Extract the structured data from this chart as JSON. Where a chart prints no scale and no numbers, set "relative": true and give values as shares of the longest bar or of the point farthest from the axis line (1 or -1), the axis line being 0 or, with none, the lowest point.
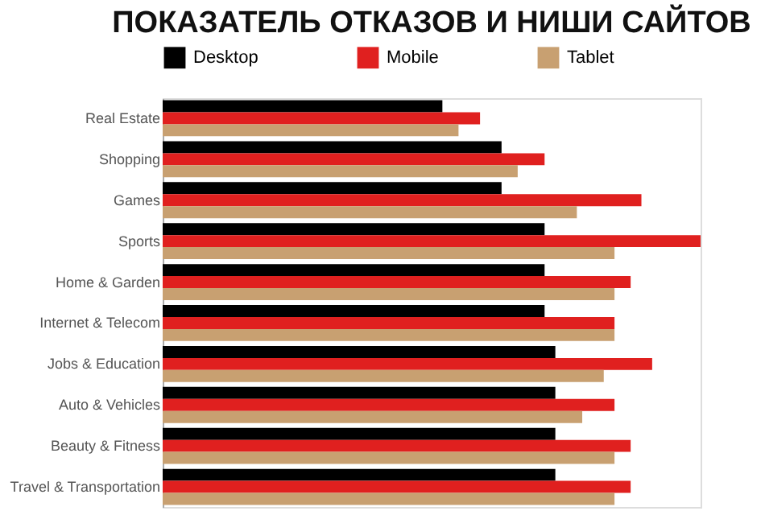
{
  "chart_data": {
    "type": "bar",
    "title": "ПОКАЗАТЕЛЬ ОТКАЗОВ И НИШИ САЙТОВ",
    "orientation": "horizontal",
    "relative": true,
    "legend": "top",
    "categories": [
      "Real Estate",
      "Shopping",
      "Games",
      "Sports",
      "Home & Garden",
      "Internet & Telecom",
      "Jobs & Education",
      "Auto & Vehicles",
      "Beauty & Fitness",
      "Travel & Transportation"
    ],
    "series": [
      {
        "name": "Desktop",
        "color": "#000000",
        "values": [
          0.52,
          0.63,
          0.63,
          0.71,
          0.71,
          0.71,
          0.73,
          0.73,
          0.73,
          0.73
        ]
      },
      {
        "name": "Mobile",
        "color": "#e0201f",
        "values": [
          0.59,
          0.71,
          0.89,
          1.0,
          0.87,
          0.84,
          0.91,
          0.84,
          0.87,
          0.87
        ]
      },
      {
        "name": "Tablet",
        "color": "#c8a071",
        "values": [
          0.55,
          0.66,
          0.77,
          0.84,
          0.84,
          0.84,
          0.82,
          0.78,
          0.84,
          0.84
        ]
      }
    ]
  }
}
